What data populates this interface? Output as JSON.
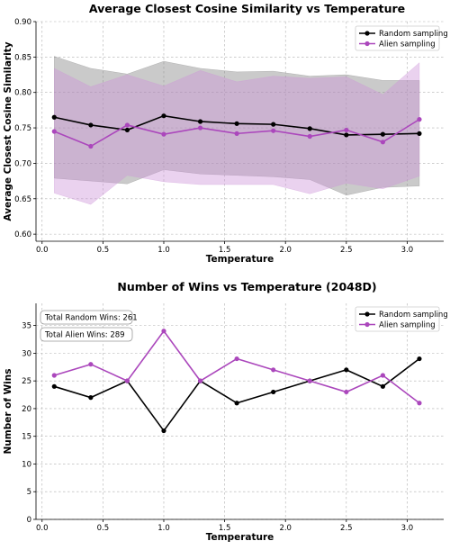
{
  "chart_data": [
    {
      "type": "line",
      "title": "Average Closest Cosine Similarity vs Temperature",
      "xlabel": "Temperature",
      "ylabel": "Average Closest Cosine Similarity",
      "x": [
        0.1,
        0.4,
        0.7,
        1.0,
        1.3,
        1.6,
        1.9,
        2.2,
        2.5,
        2.8,
        3.1
      ],
      "xlim": [
        -0.05,
        3.3
      ],
      "ylim": [
        0.59,
        0.9
      ],
      "xticks": [
        "0.0",
        "0.5",
        "1.0",
        "1.5",
        "2.0",
        "2.5",
        "3.0"
      ],
      "xtick_values": [
        0.0,
        0.5,
        1.0,
        1.5,
        2.0,
        2.5,
        3.0
      ],
      "yticks": [
        "0.60",
        "0.65",
        "0.70",
        "0.75",
        "0.80",
        "0.85",
        "0.90"
      ],
      "ytick_values": [
        0.6,
        0.65,
        0.7,
        0.75,
        0.8,
        0.85,
        0.9
      ],
      "grid": true,
      "legend_position": "top-right",
      "series": [
        {
          "name": "Random sampling",
          "color": "#000000",
          "band_color": "#808080",
          "values": [
            0.765,
            0.754,
            0.747,
            0.767,
            0.759,
            0.756,
            0.755,
            0.749,
            0.74,
            0.741,
            0.742
          ],
          "upper": [
            0.851,
            0.834,
            0.826,
            0.844,
            0.834,
            0.829,
            0.83,
            0.823,
            0.825,
            0.817,
            0.817
          ],
          "lower": [
            0.679,
            0.675,
            0.671,
            0.691,
            0.685,
            0.683,
            0.681,
            0.677,
            0.655,
            0.666,
            0.668
          ]
        },
        {
          "name": "Alien sampling",
          "color": "#ab47bc",
          "band_color": "#ce93d8",
          "values": [
            0.745,
            0.724,
            0.754,
            0.741,
            0.75,
            0.742,
            0.746,
            0.738,
            0.747,
            0.73,
            0.762
          ],
          "upper": [
            0.834,
            0.808,
            0.825,
            0.809,
            0.831,
            0.815,
            0.823,
            0.82,
            0.822,
            0.797,
            0.842
          ],
          "lower": [
            0.658,
            0.642,
            0.683,
            0.674,
            0.67,
            0.67,
            0.67,
            0.657,
            0.672,
            0.664,
            0.682
          ]
        }
      ]
    },
    {
      "type": "line",
      "title": "Number of Wins vs Temperature (2048D)",
      "xlabel": "Temperature",
      "ylabel": "Number of Wins",
      "x": [
        0.1,
        0.4,
        0.7,
        1.0,
        1.3,
        1.6,
        1.9,
        2.2,
        2.5,
        2.8,
        3.1
      ],
      "xlim": [
        -0.05,
        3.3
      ],
      "ylim": [
        0,
        39
      ],
      "xticks": [
        "0.0",
        "0.5",
        "1.0",
        "1.5",
        "2.0",
        "2.5",
        "3.0"
      ],
      "xtick_values": [
        0.0,
        0.5,
        1.0,
        1.5,
        2.0,
        2.5,
        3.0
      ],
      "yticks": [
        "0",
        "5",
        "10",
        "15",
        "20",
        "25",
        "30",
        "35"
      ],
      "ytick_values": [
        0,
        5,
        10,
        15,
        20,
        25,
        30,
        35
      ],
      "grid": true,
      "legend_position": "top-right",
      "annotations": [
        "Total Random Wins: 261",
        "Total Alien Wins: 289"
      ],
      "series": [
        {
          "name": "Random sampling",
          "color": "#000000",
          "values": [
            24,
            22,
            25,
            16,
            25,
            21,
            23,
            25,
            27,
            24,
            29
          ]
        },
        {
          "name": "Alien sampling",
          "color": "#ab47bc",
          "values": [
            26,
            28,
            25,
            34,
            25,
            29,
            27,
            25,
            23,
            26,
            21
          ]
        }
      ]
    }
  ]
}
